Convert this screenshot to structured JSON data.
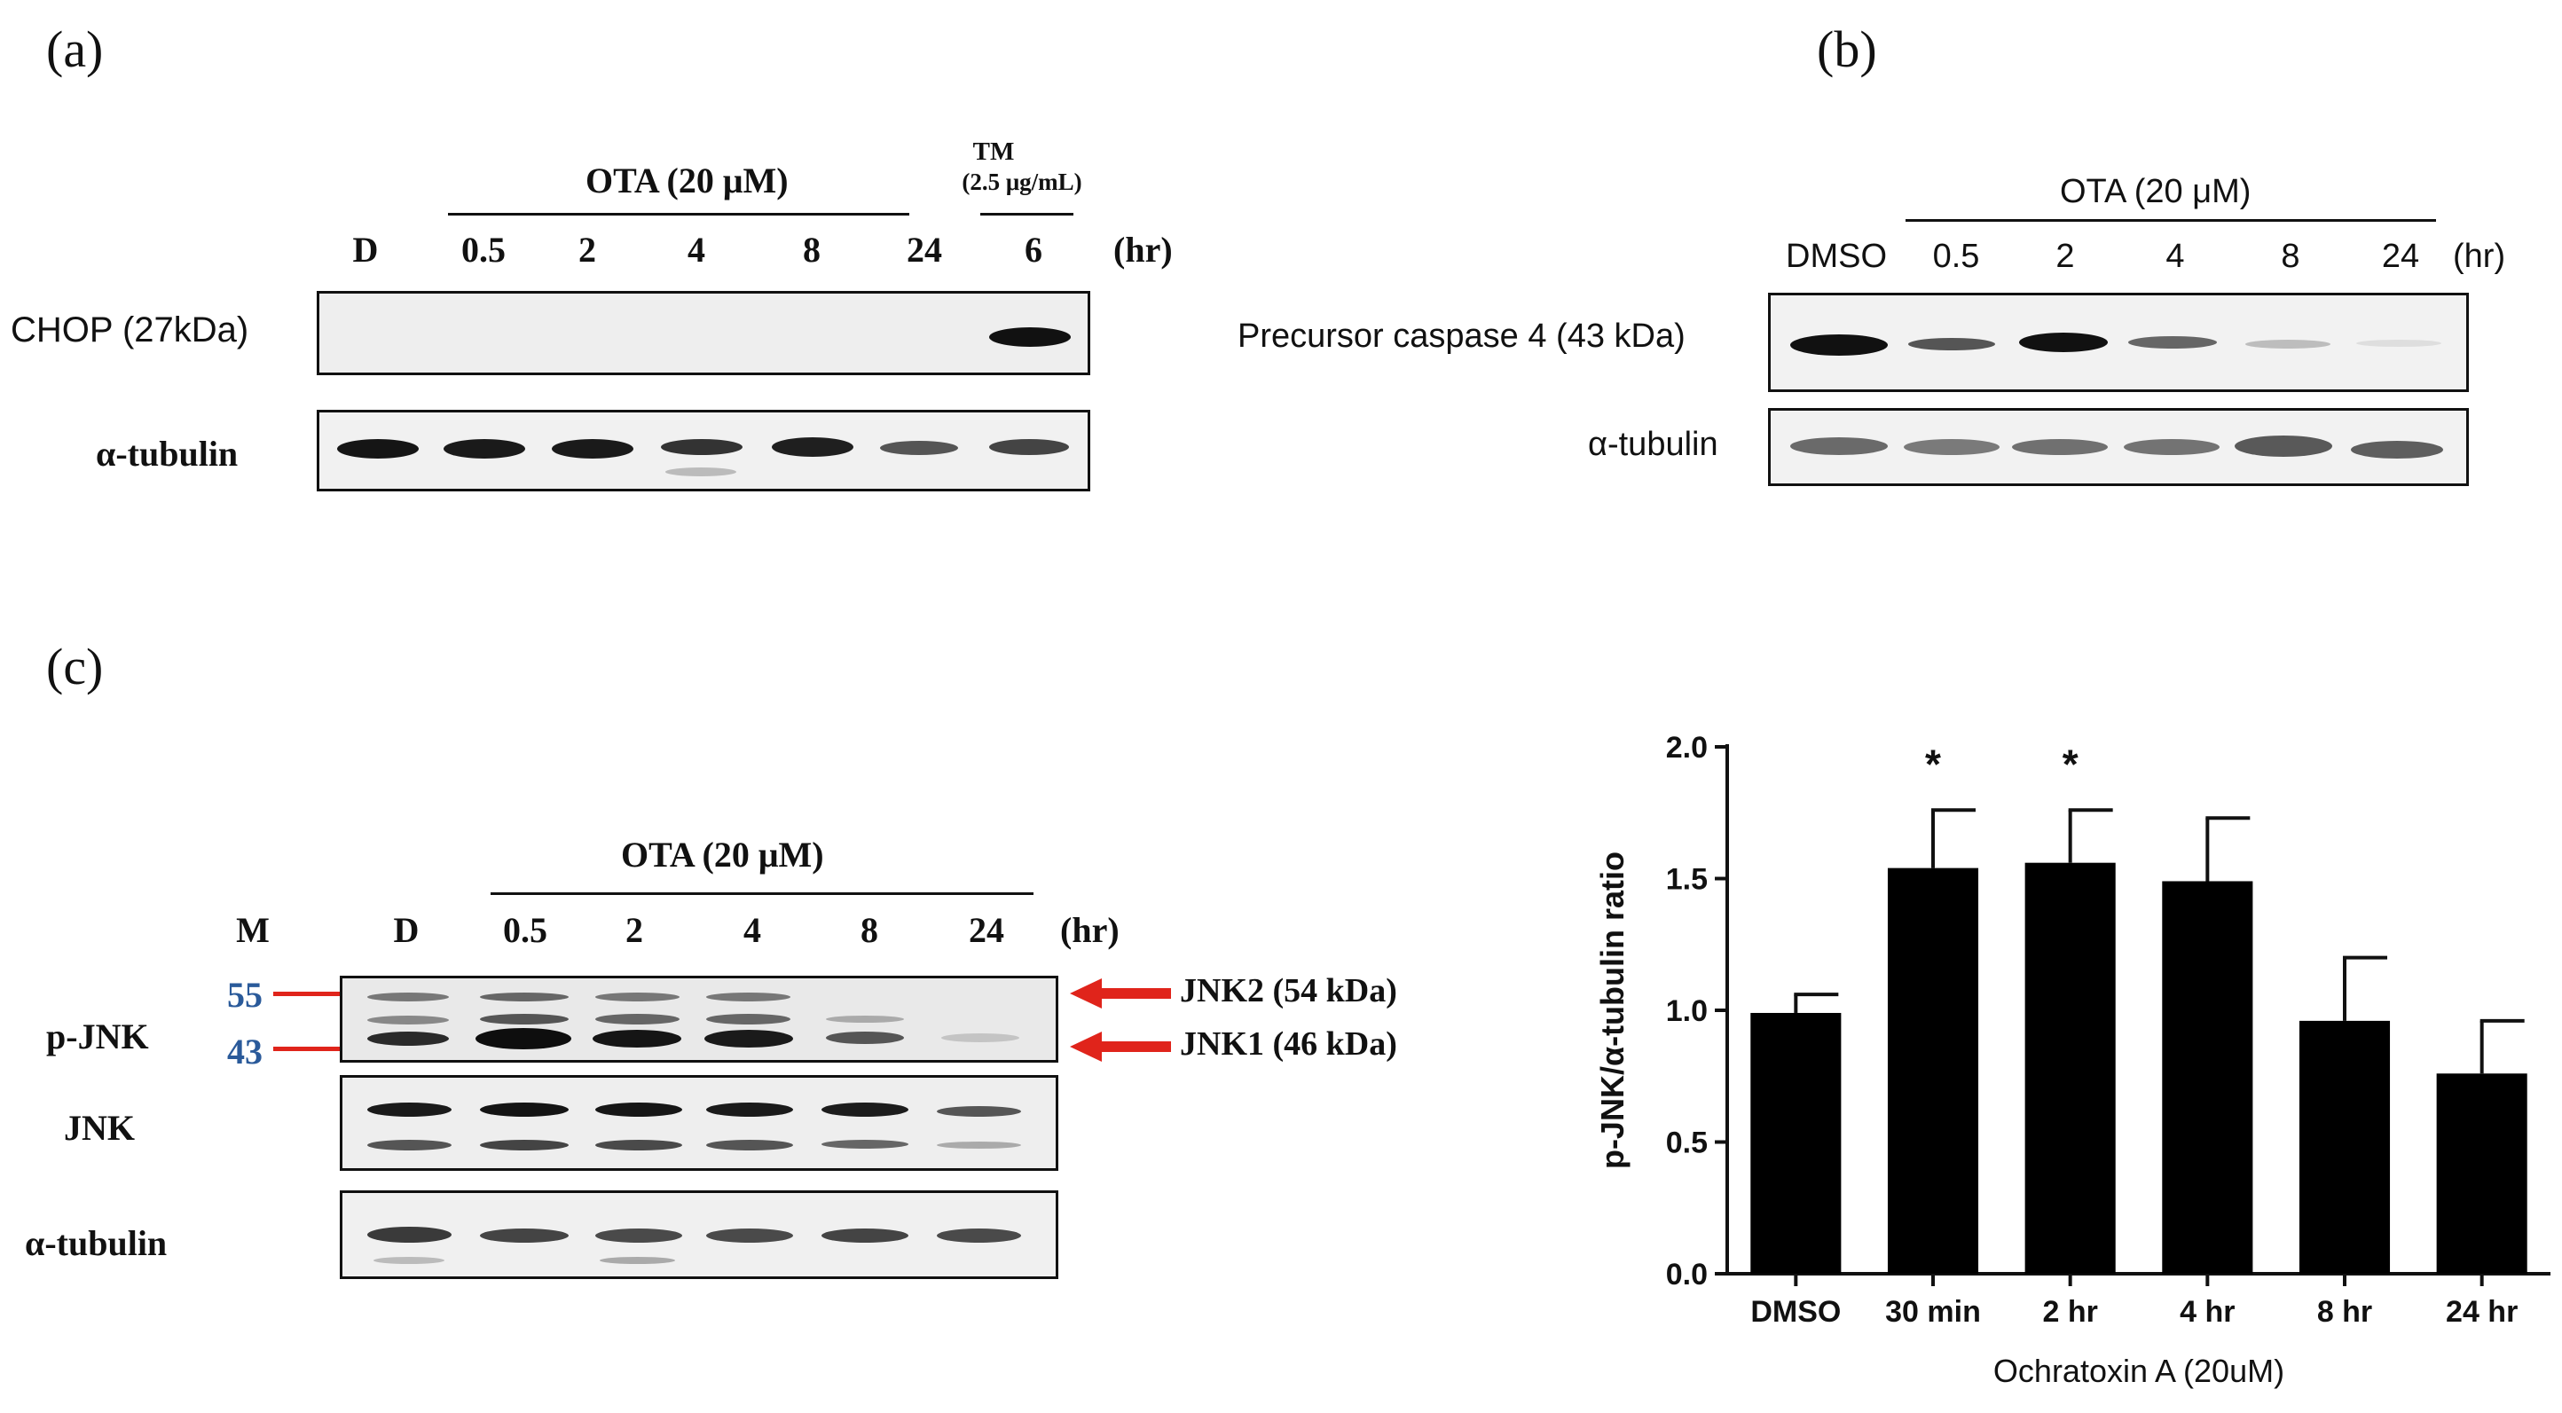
{
  "panel_a": {
    "letter": "(a)",
    "treatment_label": "OTA (20 μM)",
    "tm_label_1": "TM",
    "tm_label_2": "(2.5 μg/mL)",
    "lanes": [
      "D",
      "0.5",
      "2",
      "4",
      "8",
      "24",
      "6"
    ],
    "unit": "(hr)",
    "rows": [
      "CHOP (27kDa)",
      "α-tubulin"
    ]
  },
  "panel_b": {
    "letter": "(b)",
    "treatment_label": "OTA (20 μM)",
    "lanes": [
      "DMSO",
      "0.5",
      "2",
      "4",
      "8",
      "24"
    ],
    "unit": "(hr)",
    "rows": [
      "Precursor caspase 4 (43 kDa)",
      "α-tubulin"
    ]
  },
  "panel_c": {
    "letter": "(c)",
    "treatment_label": "OTA (20 μM)",
    "lanes": [
      "M",
      "D",
      "0.5",
      "2",
      "4",
      "8",
      "24"
    ],
    "unit": "(hr)",
    "rows": [
      "p-JNK",
      "JNK",
      "α-tubulin"
    ],
    "markers": [
      "55",
      "43"
    ],
    "arrows": [
      "JNK2 (54 kDa)",
      "JNK1 (46 kDa)"
    ]
  },
  "chart_data": {
    "type": "bar",
    "categories": [
      "DMSO",
      "30 min",
      "2 hr",
      "4 hr",
      "8 hr",
      "24 hr"
    ],
    "values": [
      0.99,
      1.54,
      1.56,
      1.49,
      0.96,
      0.76
    ],
    "errors": [
      0.07,
      0.22,
      0.2,
      0.24,
      0.24,
      0.2
    ],
    "significance": [
      "",
      "*",
      "*",
      "",
      "",
      ""
    ],
    "xlabel": "Ochratoxin A  (20uM)",
    "ylabel": "p-JNK/α-tubulin ratio",
    "ylim": [
      0,
      2.0
    ],
    "yticks": [
      "0.0",
      "0.5",
      "1.0",
      "1.5",
      "2.0"
    ],
    "bar_color": "#000000",
    "grid": false
  }
}
